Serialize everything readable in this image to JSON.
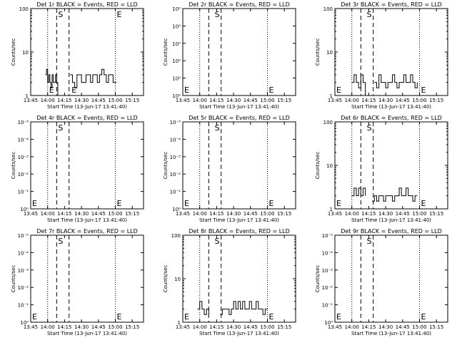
{
  "chart_data": [
    {
      "type": "line",
      "title": "Det 1r BLACK = Events, RED = LLD",
      "xlabel": "Start Time (13-Jun-17 13:41:40)",
      "ylabel": "Counts/sec",
      "xticks": [
        "13:45",
        "14:00",
        "14:15",
        "14:30",
        "14:45",
        "15:00",
        "15:15"
      ],
      "yscale": "log",
      "ylim": [
        1,
        100
      ],
      "yticks": [
        "1",
        "10",
        "100"
      ],
      "markers": [
        {
          "label": "E",
          "time": "14:00"
        },
        {
          "label": "S",
          "time": "14:08"
        },
        {
          "label": "E",
          "time": "14:20"
        },
        {
          "label": "E",
          "time": "15:00"
        }
      ],
      "series": [
        {
          "x": [
            "13:58",
            "13:59",
            "14:00",
            "14:01",
            "14:02",
            "14:03",
            "14:04",
            "14:05",
            "14:06",
            "14:07",
            "14:08",
            "14:09",
            "14:20",
            "14:22",
            "14:24",
            "14:26",
            "14:28",
            "14:30",
            "14:32",
            "14:34",
            "14:36",
            "14:38",
            "14:40",
            "14:42",
            "14:44",
            "14:46",
            "14:48",
            "14:50",
            "14:52",
            "14:54",
            "14:56",
            "14:58",
            "15:00",
            "15:01"
          ],
          "y": [
            3,
            4,
            2,
            3,
            2,
            1.5,
            3,
            2,
            2,
            3,
            2,
            1,
            3,
            2,
            1.5,
            3,
            3,
            2,
            2,
            3,
            3,
            2,
            3,
            3,
            2,
            3,
            4,
            3,
            2,
            3,
            3,
            2,
            2,
            2
          ]
        }
      ]
    },
    {
      "type": "line",
      "title": "Det 2r BLACK = Events, RED = LLD",
      "xlabel": "Start Time (13-Jun-17 13:41:40)",
      "ylabel": "Counts/sec",
      "xticks": [
        "13:45",
        "14:00",
        "14:15",
        "14:30",
        "14:45",
        "15:00",
        "15:15"
      ],
      "yscale": "log",
      "ylim": [
        1,
        100
      ],
      "yticks": [
        "10⁰",
        "10⁰",
        "10⁰",
        "10⁰",
        "10⁰",
        "10⁰"
      ],
      "markers": [
        {
          "label": "E",
          "time": "13:45"
        },
        {
          "label": "S",
          "time": "14:12"
        },
        {
          "label": "E",
          "time": "15:00"
        }
      ],
      "series": []
    },
    {
      "type": "line",
      "title": "Det 3r BLACK = Events, RED = LLD",
      "xlabel": "Start Time (13-Jun-17 13:41:40)",
      "ylabel": "Counts/sec",
      "xticks": [
        "13:45",
        "14:00",
        "14:15",
        "14:30",
        "14:45",
        "15:00",
        "15:15"
      ],
      "yscale": "log",
      "ylim": [
        1,
        100
      ],
      "yticks": [
        "1",
        "10",
        "100"
      ],
      "markers": [
        {
          "label": "E",
          "time": "13:45"
        },
        {
          "label": "S",
          "time": "14:12"
        },
        {
          "label": "E",
          "time": "15:00"
        }
      ],
      "series": [
        {
          "x": [
            "14:00",
            "14:02",
            "14:04",
            "14:06",
            "14:08",
            "14:10",
            "14:12",
            "14:14",
            "14:20",
            "14:22",
            "14:24",
            "14:26",
            "14:28",
            "14:30",
            "14:32",
            "14:34",
            "14:36",
            "14:38",
            "14:40",
            "14:42",
            "14:44",
            "14:46",
            "14:48",
            "14:50",
            "14:52",
            "14:54",
            "14:56",
            "14:58"
          ],
          "y": [
            2,
            3,
            2,
            1.5,
            3,
            2,
            1,
            1,
            2,
            1.5,
            3,
            2,
            2,
            1.5,
            2,
            2,
            3,
            2,
            1.5,
            2,
            2,
            3,
            2,
            2,
            3,
            2,
            1.5,
            2
          ]
        }
      ]
    },
    {
      "type": "line",
      "title": "Det 4r BLACK = Events, RED = LLD",
      "xlabel": "Start Time (13-Jun-17 13:41:40)",
      "ylabel": "Counts/sec",
      "xticks": [
        "13:45",
        "14:00",
        "14:15",
        "14:30",
        "14:45",
        "15:00",
        "15:15"
      ],
      "yscale": "log",
      "ylim": [
        1,
        100
      ],
      "yticks": [
        "10⁰",
        "10⁻¹",
        "10⁻²",
        "10⁻³",
        "10⁻⁴",
        "10⁻⁵"
      ],
      "markers": [
        {
          "label": "E",
          "time": "13:45"
        },
        {
          "label": "S",
          "time": "14:08"
        },
        {
          "label": "E",
          "time": "15:00"
        }
      ],
      "series": []
    },
    {
      "type": "line",
      "title": "Det 5r BLACK = Events, RED = LLD",
      "xlabel": "Start Time (13-Jun-17 13:41:40)",
      "ylabel": "Counts/sec",
      "xticks": [
        "13:45",
        "14:00",
        "14:15",
        "14:30",
        "14:45",
        "15:00",
        "15:15"
      ],
      "yscale": "log",
      "ylim": [
        1,
        100
      ],
      "yticks": [
        "10⁰",
        "10⁻¹",
        "10⁻²",
        "10⁻³",
        "10⁻⁴",
        "10⁻⁵"
      ],
      "markers": [
        {
          "label": "E",
          "time": "13:45"
        },
        {
          "label": "S",
          "time": "14:12"
        },
        {
          "label": "E",
          "time": "15:00"
        }
      ],
      "series": []
    },
    {
      "type": "line",
      "title": "Det 6r BLACK = Events, RED = LLD",
      "xlabel": "Start Time (13-Jun-17 13:41:40)",
      "ylabel": "Counts/sec",
      "xticks": [
        "13:45",
        "14:00",
        "14:15",
        "14:30",
        "14:45",
        "15:00",
        "15:15"
      ],
      "yscale": "log",
      "ylim": [
        1,
        100
      ],
      "yticks": [
        "1",
        "10",
        "100"
      ],
      "markers": [
        {
          "label": "E",
          "time": "13:45"
        },
        {
          "label": "S",
          "time": "14:12"
        },
        {
          "label": "E",
          "time": "15:00"
        }
      ],
      "series": [
        {
          "x": [
            "14:00",
            "14:02",
            "14:04",
            "14:06",
            "14:08",
            "14:10",
            "14:12",
            "14:18",
            "14:20",
            "14:22",
            "14:24",
            "14:26",
            "14:28",
            "14:30",
            "14:32",
            "14:34",
            "14:36",
            "14:38",
            "14:40",
            "14:42",
            "14:44",
            "14:46",
            "14:48",
            "14:50",
            "14:52",
            "14:54",
            "14:56",
            "14:58"
          ],
          "y": [
            2,
            3,
            2,
            3,
            2,
            3,
            2,
            1.5,
            2,
            1.5,
            2,
            2,
            1.5,
            2,
            2,
            2,
            1.5,
            2,
            2,
            3,
            2,
            2,
            3,
            2,
            2,
            1.5,
            2,
            2
          ]
        }
      ]
    },
    {
      "type": "line",
      "title": "Det 7r BLACK = Events, RED = LLD",
      "xlabel": "Start Time (13-Jun-17 13:41:40)",
      "ylabel": "Counts/sec",
      "xticks": [
        "13:45",
        "14:00",
        "14:15",
        "14:30",
        "14:45",
        "15:00",
        "15:15"
      ],
      "yscale": "log",
      "ylim": [
        1,
        100
      ],
      "yticks": [
        "10⁰",
        "10⁻¹",
        "10⁻²",
        "10⁻³",
        "10⁻⁴",
        "10⁻⁵"
      ],
      "markers": [
        {
          "label": "E",
          "time": "13:45"
        },
        {
          "label": "S",
          "time": "14:08"
        },
        {
          "label": "E",
          "time": "15:00"
        }
      ],
      "series": []
    },
    {
      "type": "line",
      "title": "Det 8r BLACK = Events, RED = LLD",
      "xlabel": "Start Time (13-Jun-17 13:41:40)",
      "ylabel": "Counts/sec",
      "xticks": [
        "13:45",
        "14:00",
        "14:15",
        "14:30",
        "14:45",
        "15:00",
        "15:15"
      ],
      "yscale": "log",
      "ylim": [
        1,
        100
      ],
      "yticks": [
        "1",
        "10",
        "100"
      ],
      "markers": [
        {
          "label": "E",
          "time": "13:45"
        },
        {
          "label": "S",
          "time": "14:12"
        },
        {
          "label": "E",
          "time": "15:00"
        }
      ],
      "series": [
        {
          "x": [
            "13:58",
            "14:00",
            "14:02",
            "14:04",
            "14:06",
            "14:08",
            "14:18",
            "14:20",
            "14:22",
            "14:24",
            "14:26",
            "14:28",
            "14:30",
            "14:32",
            "14:34",
            "14:36",
            "14:38",
            "14:40",
            "14:42",
            "14:44",
            "14:46",
            "14:48",
            "14:50",
            "14:52",
            "14:54",
            "14:56",
            "14:58",
            "15:00"
          ],
          "y": [
            2,
            3,
            2,
            1.5,
            2,
            1.5,
            1.5,
            2,
            2,
            2,
            1.5,
            2,
            3,
            2,
            3,
            2,
            3,
            2,
            2,
            3,
            2,
            2,
            3,
            2,
            2,
            1.5,
            2,
            2
          ]
        }
      ]
    },
    {
      "type": "line",
      "title": "Det 9r BLACK = Events, RED = LLD",
      "xlabel": "Start Time (13-Jun-17 13:41:40)",
      "ylabel": "Counts/sec",
      "xticks": [
        "13:45",
        "14:00",
        "14:15",
        "14:30",
        "14:45",
        "15:00",
        "15:15"
      ],
      "yscale": "log",
      "ylim": [
        1,
        100
      ],
      "yticks": [
        "10⁰",
        "10⁻¹",
        "10⁻²",
        "10⁻³",
        "10⁻⁴",
        "10⁻⁵"
      ],
      "markers": [
        {
          "label": "E",
          "time": "13:45"
        },
        {
          "label": "S",
          "time": "14:12"
        },
        {
          "label": "E",
          "time": "15:00"
        }
      ],
      "series": []
    }
  ]
}
